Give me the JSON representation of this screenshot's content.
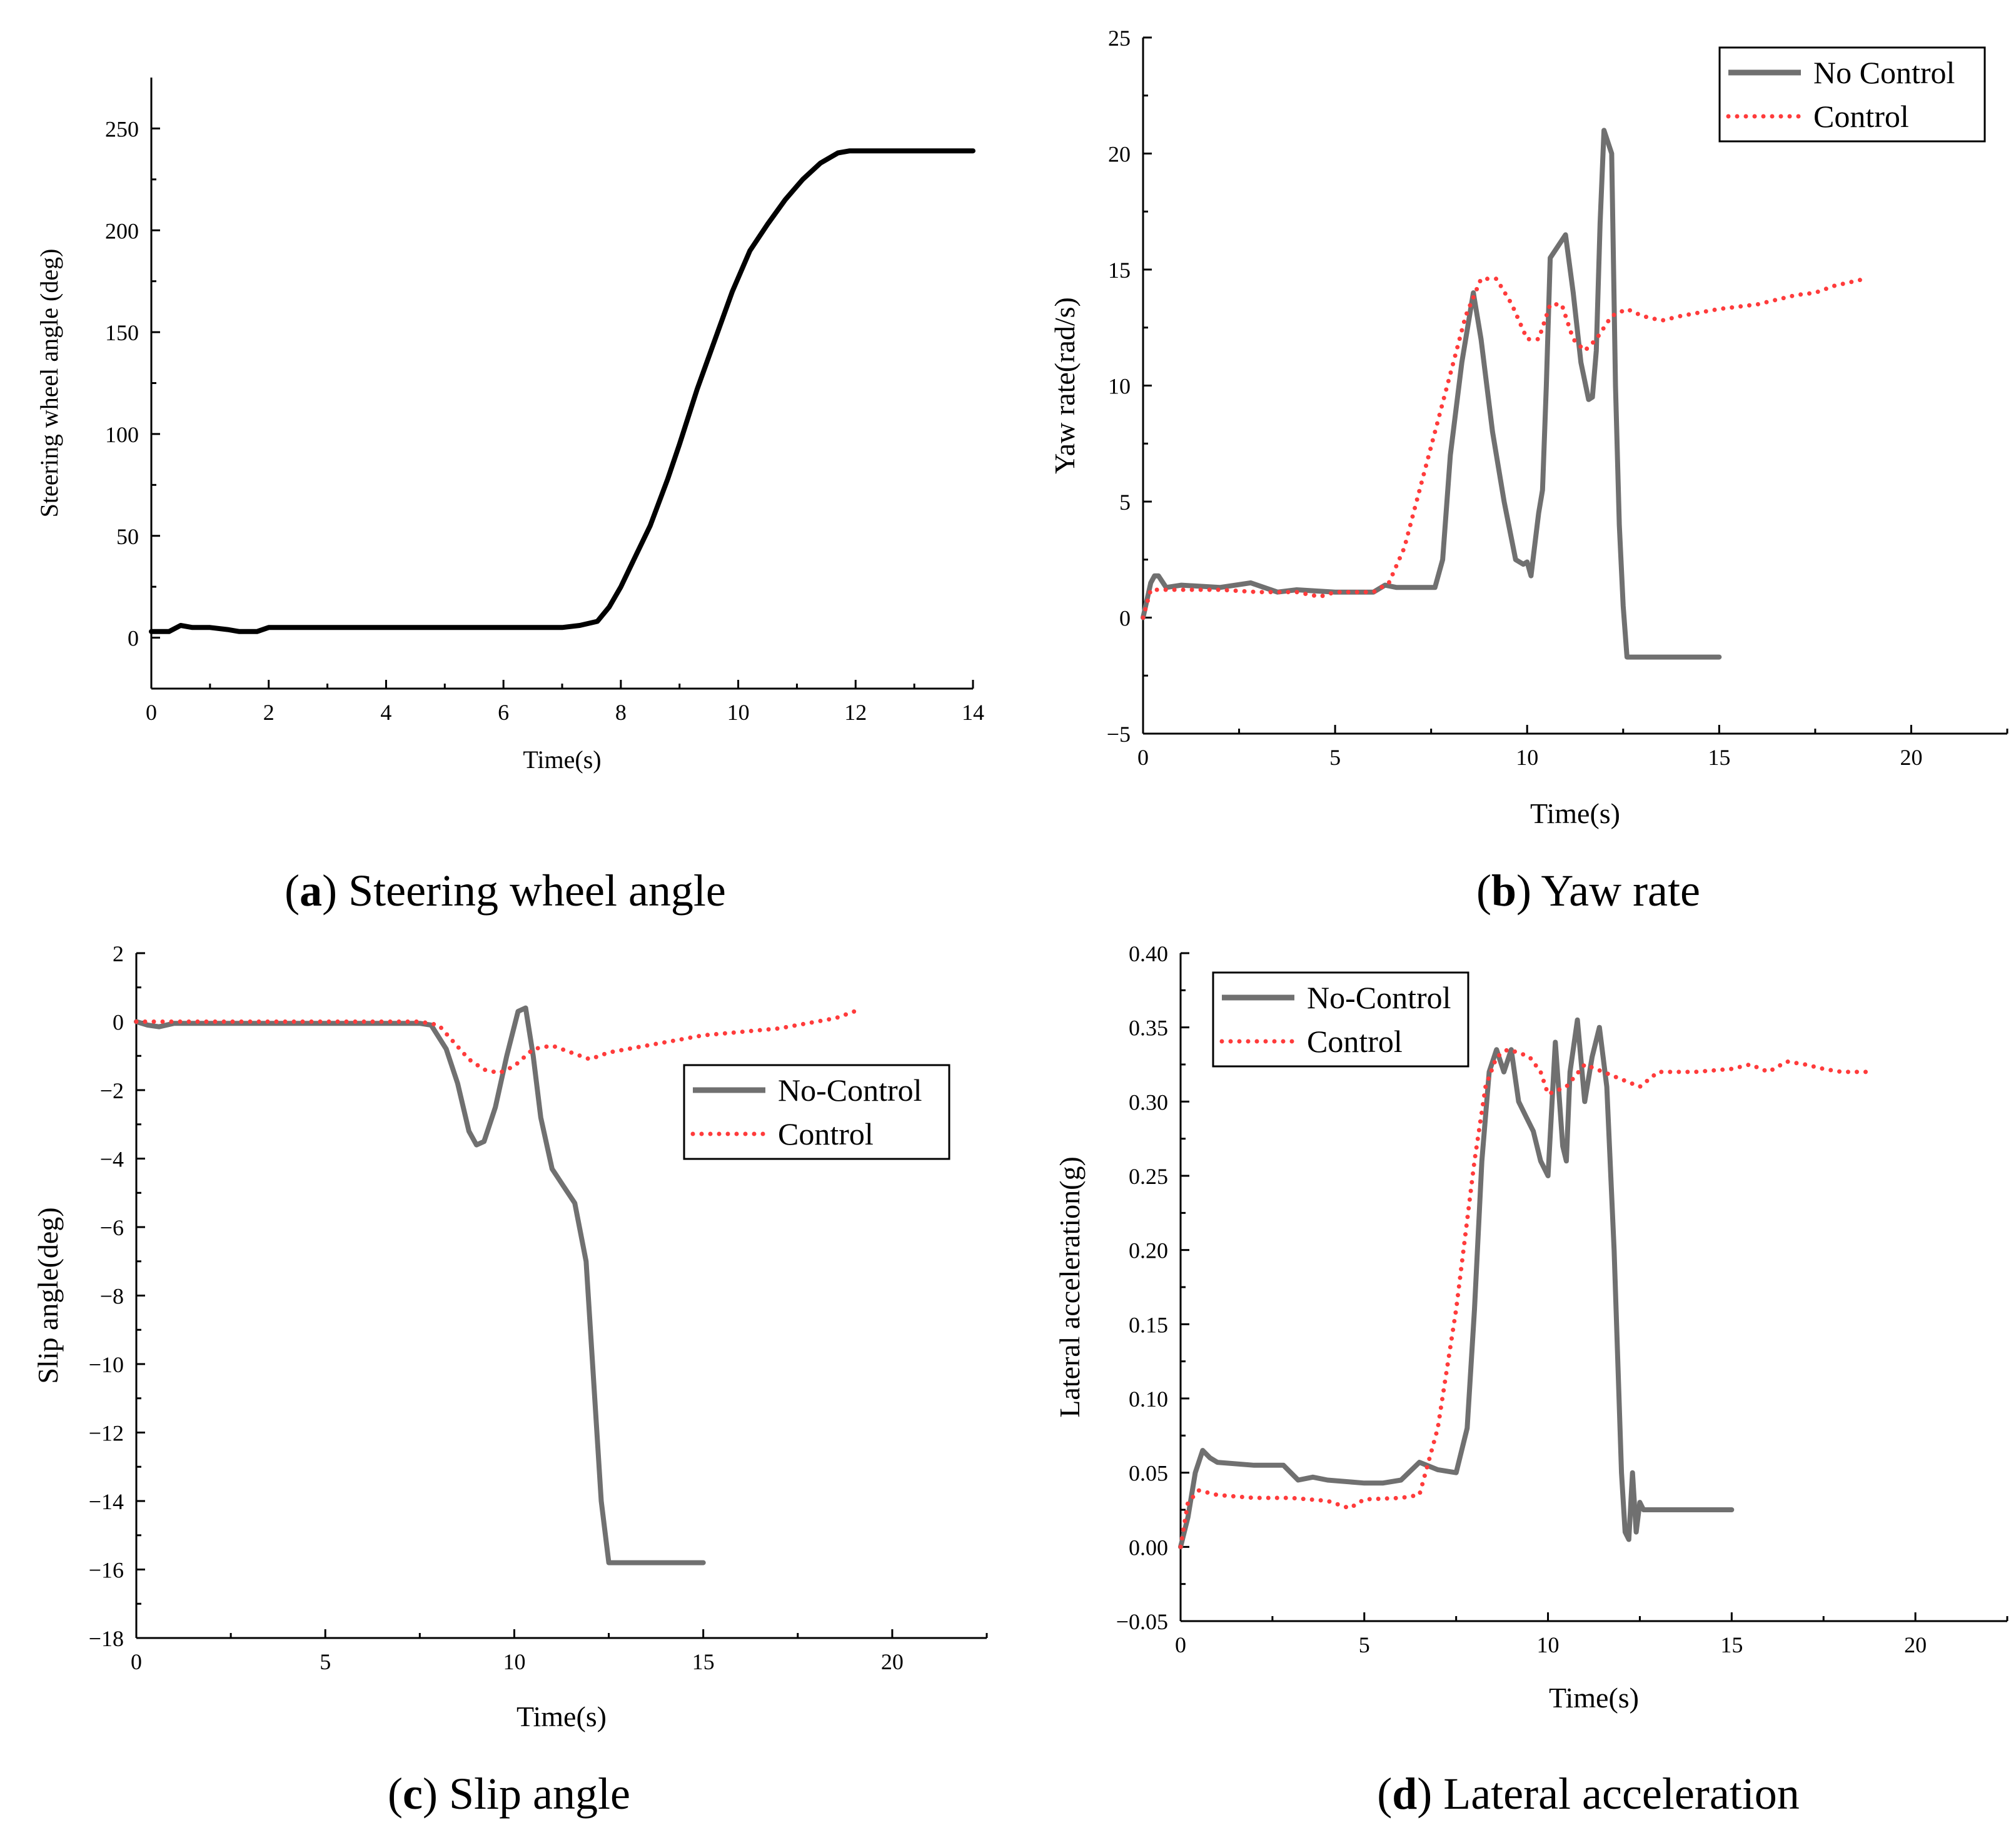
{
  "colors": {
    "nocontrol": "#707070",
    "control": "#ff3b3b",
    "steer": "#000000",
    "axis": "#000000"
  },
  "chart_data": [
    {
      "id": "a",
      "type": "line",
      "caption": {
        "letter": "a",
        "text": " Steering wheel angle"
      },
      "xlabel": "Time(s)",
      "ylabel": "Steering wheel angle (deg)",
      "xlim": [
        0,
        14
      ],
      "ylim": [
        -25,
        275
      ],
      "xticks": [
        0,
        2,
        4,
        6,
        8,
        10,
        12,
        14
      ],
      "xtick_labels": [
        "0",
        "2",
        "4",
        "6",
        "8",
        "10",
        "12",
        "14"
      ],
      "yticks": [
        0,
        50,
        100,
        150,
        200,
        250
      ],
      "ytick_labels": [
        "0",
        "50",
        "100",
        "150",
        "200",
        "250"
      ],
      "legend": null,
      "series": [
        {
          "name": "Steering wheel angle",
          "style": "solid",
          "color": "steer",
          "x": [
            0,
            0.3,
            0.5,
            0.7,
            1.0,
            1.3,
            1.5,
            1.8,
            2.0,
            3,
            4,
            5,
            6,
            7,
            7.3,
            7.6,
            7.8,
            8.0,
            8.2,
            8.5,
            8.8,
            9.0,
            9.3,
            9.6,
            9.9,
            10.2,
            10.5,
            10.8,
            11.1,
            11.4,
            11.7,
            11.9,
            12.5,
            14
          ],
          "y": [
            3,
            3,
            6,
            5,
            5,
            4,
            3,
            3,
            5,
            5,
            5,
            5,
            5,
            5,
            6,
            8,
            15,
            25,
            37,
            55,
            78,
            95,
            122,
            146,
            170,
            190,
            203,
            215,
            225,
            233,
            238,
            239,
            239,
            239
          ]
        }
      ]
    },
    {
      "id": "b",
      "type": "line",
      "caption": {
        "letter": "b",
        "text": " Yaw rate"
      },
      "xlabel": "Time(s)",
      "ylabel": "Yaw rate(rad/s)",
      "xlim": [
        0,
        22.5
      ],
      "ylim": [
        -5,
        25
      ],
      "xticks": [
        0,
        5,
        10,
        15,
        20
      ],
      "xtick_labels": [
        "0",
        "5",
        "10",
        "15",
        "20"
      ],
      "yticks": [
        -5,
        0,
        5,
        10,
        15,
        20,
        25
      ],
      "ytick_labels": [
        "−5",
        "0",
        "5",
        "10",
        "15",
        "20",
        "25"
      ],
      "legend": [
        "No Control",
        "Control"
      ],
      "legend_position": "top-right",
      "series": [
        {
          "name": "No Control",
          "style": "solid",
          "color": "nocontrol",
          "x": [
            0,
            0.2,
            0.3,
            0.4,
            0.6,
            1.0,
            2.0,
            2.8,
            3.5,
            4.0,
            5.0,
            6.0,
            6.3,
            6.6,
            7.0,
            7.6,
            7.8,
            8.0,
            8.3,
            8.6,
            8.8,
            9.1,
            9.4,
            9.7,
            9.9,
            10.0,
            10.1,
            10.3,
            10.4,
            10.5,
            10.6,
            10.8,
            11.0,
            11.2,
            11.4,
            11.6,
            11.7,
            11.8,
            11.9,
            12.0,
            12.2,
            12.3,
            12.4,
            12.5,
            12.6,
            13.0,
            15.0
          ],
          "y": [
            0,
            1.5,
            1.8,
            1.8,
            1.3,
            1.4,
            1.3,
            1.5,
            1.1,
            1.2,
            1.1,
            1.1,
            1.4,
            1.3,
            1.3,
            1.3,
            2.5,
            7.0,
            11.0,
            14.0,
            12.0,
            8.0,
            5.0,
            2.5,
            2.3,
            2.4,
            1.8,
            4.5,
            5.5,
            10.0,
            15.5,
            16.0,
            16.5,
            14.0,
            11.0,
            9.4,
            9.5,
            11.5,
            17.0,
            21.0,
            20.0,
            10.0,
            4.0,
            0.5,
            -1.7,
            -1.7,
            -1.7
          ]
        },
        {
          "name": "Control",
          "style": "dotted",
          "color": "control",
          "x": [
            0,
            0.2,
            0.5,
            1.0,
            2.0,
            3.0,
            4.0,
            4.6,
            5.0,
            6.0,
            6.4,
            6.8,
            7.2,
            7.6,
            8.0,
            8.4,
            8.8,
            9.2,
            9.6,
            10.0,
            10.3,
            10.6,
            10.9,
            11.2,
            11.5,
            11.8,
            12.2,
            12.6,
            13.0,
            13.5,
            14.0,
            15.0,
            16.0,
            17.0,
            17.5,
            18.0,
            18.8
          ],
          "y": [
            0,
            1.2,
            1.2,
            1.2,
            1.2,
            1.1,
            1.1,
            0.9,
            1.1,
            1.1,
            1.5,
            3.0,
            5.5,
            8.0,
            10.5,
            13.0,
            14.6,
            14.6,
            13.5,
            12.0,
            12.0,
            13.5,
            13.5,
            12.0,
            11.5,
            12.0,
            13.0,
            13.3,
            13.0,
            12.8,
            13.0,
            13.3,
            13.5,
            13.9,
            14.0,
            14.3,
            14.6
          ]
        }
      ]
    },
    {
      "id": "c",
      "type": "line",
      "caption": {
        "letter": "c",
        "text": " Slip angle"
      },
      "xlabel": "Time(s)",
      "ylabel": "Slip angle(deg)",
      "xlim": [
        0,
        22.5
      ],
      "ylim": [
        -18,
        2
      ],
      "xticks": [
        0,
        5,
        10,
        15,
        20
      ],
      "xtick_labels": [
        "0",
        "5",
        "10",
        "15",
        "20"
      ],
      "yticks": [
        -18,
        -16,
        -14,
        -12,
        -10,
        -8,
        -6,
        -4,
        -2,
        0,
        2
      ],
      "ytick_labels": [
        "−18",
        "−16",
        "−14",
        "−12",
        "−10",
        "−8",
        "−6",
        "−4",
        "−2",
        "0",
        "2"
      ],
      "legend": [
        "No-Control",
        "Control"
      ],
      "legend_position": "center-right",
      "series": [
        {
          "name": "No-Control",
          "style": "solid",
          "color": "nocontrol",
          "x": [
            0,
            0.3,
            0.6,
            1,
            2,
            3,
            4,
            5,
            6,
            7,
            7.5,
            7.8,
            8.2,
            8.5,
            8.8,
            9.0,
            9.2,
            9.5,
            9.8,
            10.1,
            10.3,
            10.5,
            10.7,
            11.0,
            11.3,
            11.6,
            11.9,
            12.1,
            12.3,
            12.5,
            12.7,
            13.0,
            14.0,
            15.0
          ],
          "y": [
            0,
            -0.1,
            -0.15,
            -0.05,
            -0.05,
            -0.05,
            -0.05,
            -0.05,
            -0.05,
            -0.05,
            -0.05,
            -0.1,
            -0.8,
            -1.8,
            -3.2,
            -3.6,
            -3.5,
            -2.5,
            -1.0,
            0.3,
            0.4,
            -1.0,
            -2.8,
            -4.3,
            -4.8,
            -5.3,
            -7.0,
            -10.5,
            -14.0,
            -15.8,
            -15.8,
            -15.8,
            -15.8,
            -15.8
          ]
        },
        {
          "name": "Control",
          "style": "dotted",
          "color": "control",
          "x": [
            0,
            1,
            2,
            3,
            4,
            5,
            6,
            7,
            7.5,
            8.0,
            8.4,
            8.8,
            9.2,
            9.6,
            10.0,
            10.5,
            11.0,
            11.5,
            12.0,
            12.5,
            13.0,
            14.0,
            15.0,
            16.0,
            17.0,
            18.0,
            18.5,
            19.0
          ],
          "y": [
            0,
            0,
            0,
            0,
            0,
            0,
            0,
            0,
            0,
            -0.1,
            -0.6,
            -1.1,
            -1.4,
            -1.5,
            -1.3,
            -0.8,
            -0.7,
            -0.9,
            -1.1,
            -0.9,
            -0.8,
            -0.6,
            -0.4,
            -0.3,
            -0.2,
            0,
            0.1,
            0.3
          ]
        }
      ]
    },
    {
      "id": "d",
      "type": "line",
      "caption": {
        "letter": "d",
        "text": " Lateral acceleration"
      },
      "xlabel": "Time(s)",
      "ylabel": "Lateral acceleration(g)",
      "xlim": [
        0,
        22.5
      ],
      "ylim": [
        -0.05,
        0.4
      ],
      "xticks": [
        0,
        5,
        10,
        15,
        20
      ],
      "xtick_labels": [
        "0",
        "5",
        "10",
        "15",
        "20"
      ],
      "yticks": [
        -0.05,
        0.0,
        0.05,
        0.1,
        0.15,
        0.2,
        0.25,
        0.3,
        0.35,
        0.4
      ],
      "ytick_labels": [
        "−0.05",
        "0.00",
        "0.05",
        "0.10",
        "0.15",
        "0.20",
        "0.25",
        "0.30",
        "0.35",
        "0.40"
      ],
      "legend": [
        "No-Control",
        "Control"
      ],
      "legend_position": "top-left",
      "series": [
        {
          "name": "No-Control",
          "style": "solid",
          "color": "nocontrol",
          "x": [
            0,
            0.2,
            0.4,
            0.6,
            0.8,
            1.0,
            2.0,
            2.8,
            3.2,
            3.6,
            4.0,
            5.0,
            5.5,
            6.0,
            6.5,
            7.0,
            7.5,
            7.8,
            8.0,
            8.2,
            8.4,
            8.6,
            8.8,
            9.0,
            9.2,
            9.4,
            9.6,
            9.8,
            10.0,
            10.2,
            10.4,
            10.5,
            10.6,
            10.8,
            11.0,
            11.2,
            11.4,
            11.6,
            11.8,
            12.0,
            12.1,
            12.2,
            12.3,
            12.4,
            12.5,
            12.6,
            13.0,
            15.0
          ],
          "y": [
            0.0,
            0.02,
            0.05,
            0.065,
            0.06,
            0.057,
            0.055,
            0.055,
            0.045,
            0.047,
            0.045,
            0.043,
            0.043,
            0.045,
            0.057,
            0.052,
            0.05,
            0.08,
            0.16,
            0.26,
            0.32,
            0.335,
            0.32,
            0.335,
            0.3,
            0.29,
            0.28,
            0.26,
            0.25,
            0.34,
            0.27,
            0.26,
            0.32,
            0.355,
            0.3,
            0.33,
            0.35,
            0.31,
            0.2,
            0.05,
            0.01,
            0.005,
            0.05,
            0.01,
            0.03,
            0.025,
            0.025,
            0.025
          ]
        },
        {
          "name": "Control",
          "style": "dotted",
          "color": "control",
          "x": [
            0,
            0.2,
            0.5,
            1.0,
            2.0,
            3.0,
            4.0,
            4.6,
            5.0,
            6.0,
            6.5,
            7.0,
            7.5,
            8.0,
            8.3,
            8.6,
            8.9,
            9.2,
            9.5,
            9.8,
            10.0,
            10.5,
            11.0,
            11.5,
            12.0,
            12.5,
            13.0,
            14.0,
            15.0,
            15.5,
            16.0,
            16.5,
            17.0,
            17.5,
            18.0,
            18.8
          ],
          "y": [
            0.0,
            0.03,
            0.038,
            0.035,
            0.033,
            0.033,
            0.031,
            0.026,
            0.032,
            0.033,
            0.035,
            0.08,
            0.16,
            0.26,
            0.31,
            0.33,
            0.335,
            0.333,
            0.33,
            0.32,
            0.305,
            0.31,
            0.325,
            0.32,
            0.315,
            0.31,
            0.32,
            0.32,
            0.322,
            0.325,
            0.32,
            0.327,
            0.325,
            0.322,
            0.32,
            0.32
          ]
        }
      ]
    }
  ]
}
